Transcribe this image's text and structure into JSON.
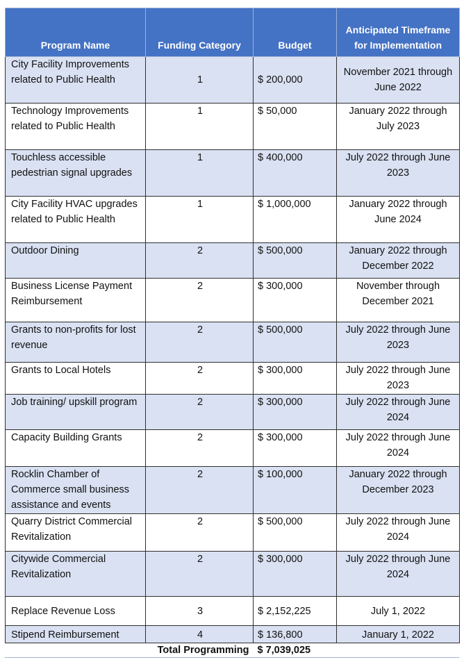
{
  "header": {
    "program": "Program Name",
    "category": "Funding Category",
    "budget": "Budget",
    "timeframe": "Anticipated Timeframe for Implementation"
  },
  "rows": [
    {
      "name": "City Facility Improvements related to Public Health",
      "category": "1",
      "budget": "$ 200,000",
      "timeframe": "November 2021 through June 2022"
    },
    {
      "name": "Technology Improvements related to Public Health",
      "category": "1",
      "budget": "$ 50,000",
      "timeframe": "January 2022 through July 2023"
    },
    {
      "name": "Touchless accessible pedestrian signal upgrades",
      "category": "1",
      "budget": "$ 400,000",
      "timeframe": "July 2022 through June 2023"
    },
    {
      "name": "City Facility HVAC upgrades related to Public Health",
      "category": "1",
      "budget": "$ 1,000,000",
      "timeframe": "January 2022 through June 2024"
    },
    {
      "name": "Outdoor Dining",
      "category": "2",
      "budget": "$ 500,000",
      "timeframe": "January 2022 through December 2022"
    },
    {
      "name": "Business License Payment Reimbursement",
      "category": "2",
      "budget": "$ 300,000",
      "timeframe": "November through December 2021"
    },
    {
      "name": "Grants to non-profits for lost revenue",
      "category": "2",
      "budget": "$ 500,000",
      "timeframe": "July 2022 through June 2023"
    },
    {
      "name": "Grants to Local Hotels",
      "category": "2",
      "budget": "$ 300,000",
      "timeframe": "July 2022 through June 2023"
    },
    {
      "name": "Job training/ upskill program",
      "category": "2",
      "budget": "$ 300,000",
      "timeframe": "July 2022 through June 2024"
    },
    {
      "name": "Capacity Building Grants",
      "category": "2",
      "budget": "$ 300,000",
      "timeframe": "July 2022 through June 2024"
    },
    {
      "name": "Rocklin Chamber of Commerce small business assistance and events",
      "category": "2",
      "budget": "$ 100,000",
      "timeframe": "January 2022 through December 2023"
    },
    {
      "name": "Quarry District Commercial Revitalization",
      "category": "2",
      "budget": "$ 500,000",
      "timeframe": "July 2022 through June 2024"
    },
    {
      "name": "Citywide Commercial Revitalization",
      "category": "2",
      "budget": "$ 300,000",
      "timeframe": "July 2022 through June 2024"
    },
    {
      "name": "Replace Revenue Loss",
      "category": "3",
      "budget": "$ 2,152,225",
      "timeframe": "July 1, 2022"
    },
    {
      "name": "Stipend Reimbursement",
      "category": "4",
      "budget": "$ 136,800",
      "timeframe": "January 1, 2022"
    }
  ],
  "total": {
    "label": "Total Programming",
    "value": "$ 7,039,025"
  }
}
